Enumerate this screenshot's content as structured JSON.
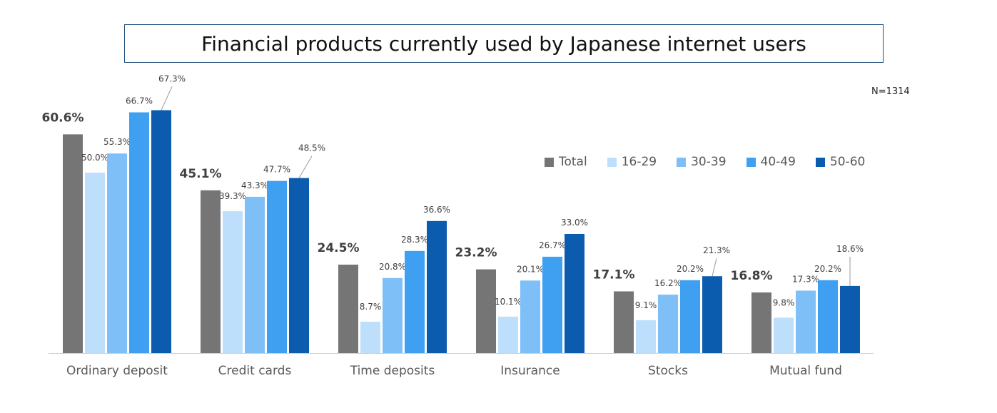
{
  "chart_data": {
    "type": "bar",
    "title": "Financial products currently used by Japanese internet users",
    "note": "N=1314",
    "categories": [
      "Ordinary deposit",
      "Credit cards",
      "Time deposits",
      "Insurance",
      "Stocks",
      "Mutual fund"
    ],
    "series": [
      {
        "name": "Total",
        "color": "#757575",
        "values": [
          60.6,
          45.1,
          24.5,
          23.2,
          17.1,
          16.8
        ],
        "labels": [
          "60.6%",
          "45.1%",
          "24.5%",
          "23.2%",
          "17.1%",
          "16.8%"
        ]
      },
      {
        "name": "16-29",
        "color": "#bddffb",
        "values": [
          50.0,
          39.3,
          8.7,
          10.1,
          9.1,
          9.8
        ],
        "labels": [
          "50.0%",
          "39.3%",
          "8.7%",
          "10.1%",
          "9.1%",
          "9.8%"
        ]
      },
      {
        "name": "30-39",
        "color": "#7fbff7",
        "values": [
          55.3,
          43.3,
          20.8,
          20.1,
          16.2,
          17.3
        ],
        "labels": [
          "55.3%",
          "43.3%",
          "20.8%",
          "20.1%",
          "16.2%",
          "17.3%"
        ]
      },
      {
        "name": "40-49",
        "color": "#3fa0f2",
        "values": [
          66.7,
          47.7,
          28.3,
          26.7,
          20.2,
          20.2
        ],
        "labels": [
          "66.7%",
          "47.7%",
          "28.3%",
          "26.7%",
          "20.2%",
          "20.2%"
        ]
      },
      {
        "name": "50-60",
        "color": "#0b5cae",
        "values": [
          67.3,
          48.5,
          36.6,
          33.0,
          21.3,
          18.6
        ],
        "labels": [
          "67.3%",
          "48.5%",
          "36.6%",
          "33.0%",
          "21.3%",
          "18.6%"
        ]
      }
    ],
    "xlabel": "",
    "ylabel": "",
    "ylim": [
      0,
      100
    ],
    "grid": false,
    "legend_position": "right"
  }
}
